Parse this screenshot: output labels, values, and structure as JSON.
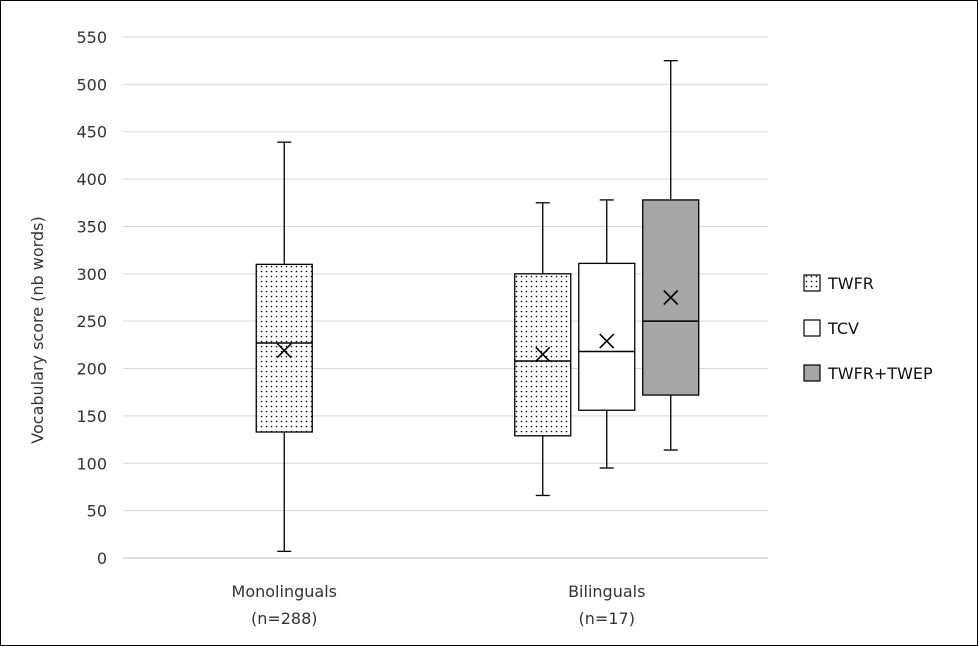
{
  "chart_data": {
    "type": "box",
    "ylabel": "Vocabulary score (nb words)",
    "ylim": [
      0,
      550
    ],
    "ytick_step": 50,
    "grid": true,
    "legend_placement": "right",
    "categories": [
      {
        "label_lines": [
          "Monolinguals",
          "(n=288)"
        ]
      },
      {
        "label_lines": [
          "Bilinguals",
          "(n=17)"
        ]
      }
    ],
    "series": [
      {
        "name": "TWFR",
        "pattern": "dots",
        "color": "#ffffff",
        "mean_marker": "x"
      },
      {
        "name": "TCV",
        "pattern": "none",
        "color": "#ffffff",
        "mean_marker": "x"
      },
      {
        "name": "TWFR+TWEP",
        "pattern": "none",
        "color": "#a6a6a6",
        "mean_marker": "x"
      }
    ],
    "boxes": [
      {
        "category": 0,
        "series": 0,
        "min": 7,
        "q1": 133,
        "median": 227,
        "q3": 310,
        "max": 439,
        "mean": 219
      },
      {
        "category": 1,
        "series": 0,
        "min": 66,
        "q1": 129,
        "median": 208,
        "q3": 300,
        "max": 375,
        "mean": 215
      },
      {
        "category": 1,
        "series": 1,
        "min": 95,
        "q1": 156,
        "median": 218,
        "q3": 311,
        "max": 378,
        "mean": 229
      },
      {
        "category": 1,
        "series": 2,
        "min": 114,
        "q1": 172,
        "median": 250,
        "q3": 378,
        "max": 525,
        "mean": 275
      }
    ]
  }
}
